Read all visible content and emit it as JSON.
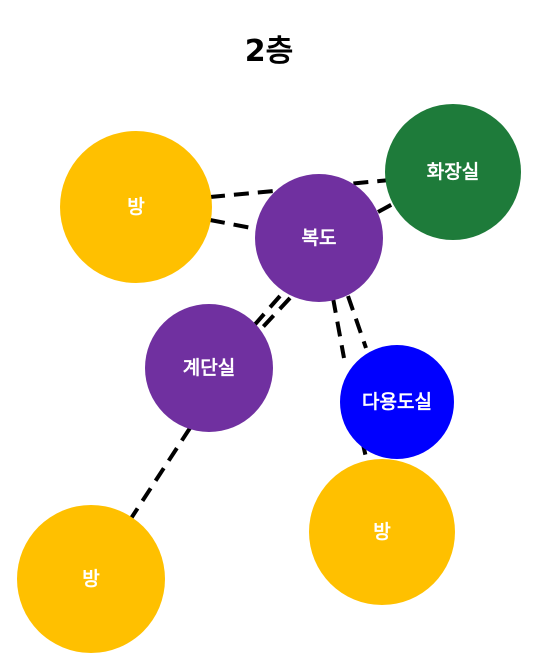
{
  "title": "2층",
  "colors": {
    "room": "#FFC000",
    "corridor": "#7030A0",
    "stairs": "#7030A0",
    "restroom": "#1E7B3A",
    "multipurpose": "#0000FF"
  },
  "nodes": {
    "room_top_left": {
      "label": "방",
      "type": "room"
    },
    "corridor": {
      "label": "복도",
      "type": "corridor"
    },
    "restroom": {
      "label": "화장실",
      "type": "restroom"
    },
    "stairs": {
      "label": "계단실",
      "type": "stairs"
    },
    "multipurpose": {
      "label": "다용도실",
      "type": "multipurpose"
    },
    "room_bottom_left": {
      "label": "방",
      "type": "room"
    },
    "room_bottom_right": {
      "label": "방",
      "type": "room"
    }
  }
}
